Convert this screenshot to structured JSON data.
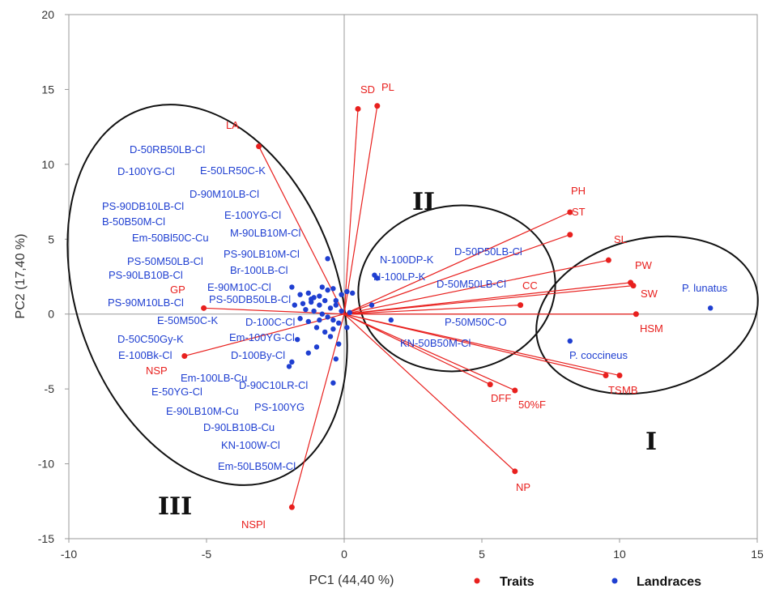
{
  "chart_data": {
    "type": "scatter",
    "subtype": "pca-biplot",
    "xlabel": "PC1 (44,40 %)",
    "ylabel": "PC2 (17,40 %)",
    "xlim": [
      -10,
      15
    ],
    "ylim": [
      -15,
      20
    ],
    "xticks": [
      -10,
      -5,
      0,
      5,
      10,
      15
    ],
    "yticks": [
      -15,
      -10,
      -5,
      0,
      5,
      10,
      15,
      20
    ],
    "grid": false,
    "legend_position": "bottom-right",
    "colors": {
      "traits": "#e8201e",
      "landraces": "#1f3fd1"
    },
    "legend": [
      {
        "name": "Traits",
        "color": "#e8201e"
      },
      {
        "name": "Landraces",
        "color": "#1f3fd1"
      }
    ],
    "traits": [
      {
        "name": "LA",
        "x": -3.1,
        "y": 11.2
      },
      {
        "name": "SD",
        "x": 0.5,
        "y": 13.7
      },
      {
        "name": "PL",
        "x": 1.2,
        "y": 13.9
      },
      {
        "name": "PH",
        "x": 8.2,
        "y": 6.8
      },
      {
        "name": "ST",
        "x": 8.2,
        "y": 5.3
      },
      {
        "name": "SL",
        "x": 9.6,
        "y": 3.6
      },
      {
        "name": "PW",
        "x": 10.4,
        "y": 2.1
      },
      {
        "name": "SW",
        "x": 10.5,
        "y": 1.9
      },
      {
        "name": "CC",
        "x": 6.4,
        "y": 0.6
      },
      {
        "name": "HSM",
        "x": 10.6,
        "y": 0.0
      },
      {
        "name": "TS",
        "x": 9.5,
        "y": -4.1
      },
      {
        "name": "MB",
        "x": 10.0,
        "y": -4.1
      },
      {
        "name": "DFF",
        "x": 5.3,
        "y": -4.7
      },
      {
        "name": "50%F",
        "x": 6.2,
        "y": -5.1
      },
      {
        "name": "NP",
        "x": 6.2,
        "y": -10.5
      },
      {
        "name": "NSPl",
        "x": -1.9,
        "y": -12.9
      },
      {
        "name": "NSP",
        "x": -5.8,
        "y": -2.8
      },
      {
        "name": "GP",
        "x": -5.1,
        "y": 0.4
      }
    ],
    "landraces": [
      {
        "name": "P. lunatus",
        "x": 13.3,
        "y": 0.4
      },
      {
        "name": "P. coccineus",
        "x": 8.2,
        "y": -1.8
      },
      {
        "name": "N-100DP-K",
        "x": 1.1,
        "y": 2.6
      },
      {
        "name": "N-100LP-K",
        "x": 1.2,
        "y": 2.4
      },
      {
        "name": "P-50M50C-O",
        "x": 1.7,
        "y": -0.4
      },
      {
        "name": "KN-50B50M-Cl",
        "x": 1.0,
        "y": 0.6
      }
    ],
    "landrace_labels_only": [
      "D-50RB50LB-Cl",
      "D-100YG-Cl",
      "E-50LR50C-K",
      "D-90M10LB-Cl",
      "PS-90DB10LB-Cl",
      "E-100YG-Cl",
      "B-50B50M-Cl",
      "M-90LB10M-Cl",
      "Em-50Bl50C-Cu",
      "PS-90LB10M-Cl",
      "PS-50M50LB-Cl",
      "Br-100LB-Cl",
      "PS-90LB10B-Cl",
      "E-90M10C-Cl",
      "PS-50DB50LB-Cl",
      "PS-90M10LB-Cl",
      "E-50M50C-K",
      "D-100C-Cl",
      "D-50C50Gy-K",
      "Em-100YG-Cl",
      "E-100Bk-Cl",
      "D-100By-Cl",
      "Em-100LB-Cu",
      "D-90C10LR-Cl",
      "E-50YG-Cl",
      "PS-100YG",
      "E-90LB10M-Cu",
      "D-90LB10B-Cu",
      "KN-100W-Cl",
      "Em-50LB50M-Cl",
      "D-50P50LB-Cl",
      "D-50M50LB-Cl"
    ],
    "landrace_cluster_points": [
      [
        -1.9,
        1.8
      ],
      [
        -1.6,
        1.3
      ],
      [
        -1.3,
        1.4
      ],
      [
        -1.1,
        1.1
      ],
      [
        -0.9,
        1.2
      ],
      [
        -0.6,
        1.6
      ],
      [
        -0.4,
        1.7
      ],
      [
        -0.1,
        1.3
      ],
      [
        0.1,
        1.5
      ],
      [
        0.3,
        1.4
      ],
      [
        -1.8,
        0.6
      ],
      [
        -1.5,
        0.7
      ],
      [
        -1.2,
        0.8
      ],
      [
        -0.9,
        0.6
      ],
      [
        -0.7,
        0.9
      ],
      [
        -0.5,
        0.4
      ],
      [
        -0.3,
        0.6
      ],
      [
        -0.1,
        0.2
      ],
      [
        0.2,
        0.1
      ],
      [
        -1.4,
        0.3
      ],
      [
        -1.1,
        0.2
      ],
      [
        -0.8,
        0.0
      ],
      [
        -0.6,
        -0.2
      ],
      [
        -0.4,
        -0.4
      ],
      [
        -0.2,
        -0.6
      ],
      [
        -1.6,
        -0.3
      ],
      [
        -1.3,
        -0.5
      ],
      [
        -1.0,
        -0.9
      ],
      [
        -0.7,
        -1.2
      ],
      [
        -0.4,
        -1.0
      ],
      [
        -0.6,
        3.7
      ],
      [
        -1.9,
        -3.2
      ],
      [
        -1.3,
        -2.6
      ],
      [
        -0.4,
        -4.6
      ],
      [
        -0.3,
        -3.0
      ],
      [
        -1.2,
        1.0
      ],
      [
        -0.9,
        -0.4
      ],
      [
        -1.7,
        -1.7
      ],
      [
        -0.2,
        -2.0
      ],
      [
        -2.0,
        -3.5
      ],
      [
        -0.5,
        -1.5
      ],
      [
        0.1,
        -0.9
      ],
      [
        -0.8,
        1.8
      ],
      [
        -0.3,
        0.9
      ],
      [
        -1.0,
        -2.2
      ]
    ]
  },
  "texts": {
    "xlabel": "PC1 (44,40 %)",
    "ylabel": "PC2 (17,40 %)",
    "group_I": "I",
    "group_II": "II",
    "group_III": "III",
    "legend_traits": "Traits",
    "legend_landraces": "Landraces"
  }
}
